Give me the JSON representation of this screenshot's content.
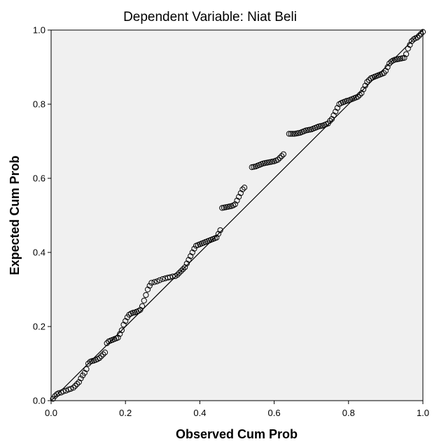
{
  "chart_data": {
    "type": "scatter",
    "title": "Dependent Variable: Niat Beli",
    "xlabel": "Observed Cum Prob",
    "ylabel": "Expected Cum Prob",
    "xlim": [
      0.0,
      1.0
    ],
    "ylim": [
      0.0,
      1.0
    ],
    "xticks": [
      "0.0",
      "0.2",
      "0.4",
      "0.6",
      "0.8",
      "1.0"
    ],
    "yticks": [
      "0.0",
      "0.2",
      "0.4",
      "0.6",
      "0.8",
      "1.0"
    ],
    "grid": false,
    "legend": "none",
    "reference_line": {
      "from": [
        0,
        0
      ],
      "to": [
        1,
        1
      ]
    },
    "series": [
      {
        "points": [
          [
            0.005,
            0.005
          ],
          [
            0.01,
            0.012
          ],
          [
            0.015,
            0.017
          ],
          [
            0.02,
            0.02
          ],
          [
            0.027,
            0.022
          ],
          [
            0.033,
            0.025
          ],
          [
            0.04,
            0.027
          ],
          [
            0.047,
            0.03
          ],
          [
            0.053,
            0.032
          ],
          [
            0.06,
            0.035
          ],
          [
            0.065,
            0.04
          ],
          [
            0.07,
            0.045
          ],
          [
            0.075,
            0.05
          ],
          [
            0.08,
            0.06
          ],
          [
            0.085,
            0.068
          ],
          [
            0.09,
            0.075
          ],
          [
            0.095,
            0.085
          ],
          [
            0.1,
            0.1
          ],
          [
            0.105,
            0.105
          ],
          [
            0.11,
            0.107
          ],
          [
            0.115,
            0.108
          ],
          [
            0.12,
            0.11
          ],
          [
            0.125,
            0.112
          ],
          [
            0.13,
            0.115
          ],
          [
            0.135,
            0.12
          ],
          [
            0.14,
            0.125
          ],
          [
            0.145,
            0.13
          ],
          [
            0.15,
            0.155
          ],
          [
            0.155,
            0.16
          ],
          [
            0.16,
            0.162
          ],
          [
            0.165,
            0.164
          ],
          [
            0.17,
            0.166
          ],
          [
            0.175,
            0.168
          ],
          [
            0.18,
            0.17
          ],
          [
            0.185,
            0.18
          ],
          [
            0.19,
            0.19
          ],
          [
            0.195,
            0.205
          ],
          [
            0.2,
            0.215
          ],
          [
            0.205,
            0.225
          ],
          [
            0.21,
            0.232
          ],
          [
            0.215,
            0.235
          ],
          [
            0.22,
            0.237
          ],
          [
            0.225,
            0.238
          ],
          [
            0.23,
            0.24
          ],
          [
            0.235,
            0.242
          ],
          [
            0.24,
            0.245
          ],
          [
            0.245,
            0.255
          ],
          [
            0.25,
            0.27
          ],
          [
            0.255,
            0.285
          ],
          [
            0.26,
            0.3
          ],
          [
            0.265,
            0.31
          ],
          [
            0.27,
            0.318
          ],
          [
            0.278,
            0.32
          ],
          [
            0.285,
            0.322
          ],
          [
            0.292,
            0.325
          ],
          [
            0.3,
            0.328
          ],
          [
            0.307,
            0.33
          ],
          [
            0.314,
            0.332
          ],
          [
            0.32,
            0.333
          ],
          [
            0.327,
            0.335
          ],
          [
            0.334,
            0.336
          ],
          [
            0.34,
            0.34
          ],
          [
            0.345,
            0.345
          ],
          [
            0.35,
            0.35
          ],
          [
            0.355,
            0.355
          ],
          [
            0.36,
            0.36
          ],
          [
            0.365,
            0.37
          ],
          [
            0.37,
            0.38
          ],
          [
            0.375,
            0.39
          ],
          [
            0.38,
            0.4
          ],
          [
            0.385,
            0.41
          ],
          [
            0.39,
            0.418
          ],
          [
            0.395,
            0.42
          ],
          [
            0.4,
            0.422
          ],
          [
            0.405,
            0.424
          ],
          [
            0.41,
            0.426
          ],
          [
            0.415,
            0.428
          ],
          [
            0.42,
            0.43
          ],
          [
            0.425,
            0.432
          ],
          [
            0.43,
            0.434
          ],
          [
            0.435,
            0.436
          ],
          [
            0.44,
            0.438
          ],
          [
            0.445,
            0.44
          ],
          [
            0.45,
            0.45
          ],
          [
            0.455,
            0.46
          ],
          [
            0.46,
            0.52
          ],
          [
            0.465,
            0.521
          ],
          [
            0.47,
            0.522
          ],
          [
            0.475,
            0.523
          ],
          [
            0.48,
            0.524
          ],
          [
            0.485,
            0.525
          ],
          [
            0.49,
            0.527
          ],
          [
            0.495,
            0.53
          ],
          [
            0.5,
            0.54
          ],
          [
            0.505,
            0.55
          ],
          [
            0.51,
            0.56
          ],
          [
            0.515,
            0.57
          ],
          [
            0.52,
            0.575
          ],
          [
            0.54,
            0.63
          ],
          [
            0.545,
            0.631
          ],
          [
            0.55,
            0.632
          ],
          [
            0.555,
            0.634
          ],
          [
            0.56,
            0.636
          ],
          [
            0.565,
            0.638
          ],
          [
            0.57,
            0.64
          ],
          [
            0.575,
            0.641
          ],
          [
            0.58,
            0.642
          ],
          [
            0.585,
            0.643
          ],
          [
            0.59,
            0.644
          ],
          [
            0.595,
            0.645
          ],
          [
            0.6,
            0.646
          ],
          [
            0.605,
            0.648
          ],
          [
            0.61,
            0.65
          ],
          [
            0.615,
            0.655
          ],
          [
            0.62,
            0.66
          ],
          [
            0.625,
            0.665
          ],
          [
            0.64,
            0.72
          ],
          [
            0.645,
            0.72
          ],
          [
            0.65,
            0.72
          ],
          [
            0.655,
            0.72
          ],
          [
            0.66,
            0.721
          ],
          [
            0.665,
            0.722
          ],
          [
            0.67,
            0.723
          ],
          [
            0.675,
            0.725
          ],
          [
            0.68,
            0.727
          ],
          [
            0.685,
            0.729
          ],
          [
            0.69,
            0.73
          ],
          [
            0.695,
            0.731
          ],
          [
            0.7,
            0.732
          ],
          [
            0.705,
            0.734
          ],
          [
            0.71,
            0.736
          ],
          [
            0.715,
            0.738
          ],
          [
            0.72,
            0.74
          ],
          [
            0.725,
            0.741
          ],
          [
            0.73,
            0.742
          ],
          [
            0.735,
            0.744
          ],
          [
            0.74,
            0.746
          ],
          [
            0.745,
            0.748
          ],
          [
            0.75,
            0.755
          ],
          [
            0.755,
            0.76
          ],
          [
            0.76,
            0.77
          ],
          [
            0.765,
            0.78
          ],
          [
            0.77,
            0.79
          ],
          [
            0.775,
            0.8
          ],
          [
            0.78,
            0.803
          ],
          [
            0.785,
            0.805
          ],
          [
            0.79,
            0.807
          ],
          [
            0.795,
            0.809
          ],
          [
            0.8,
            0.81
          ],
          [
            0.805,
            0.812
          ],
          [
            0.81,
            0.814
          ],
          [
            0.815,
            0.816
          ],
          [
            0.82,
            0.818
          ],
          [
            0.825,
            0.82
          ],
          [
            0.83,
            0.825
          ],
          [
            0.835,
            0.83
          ],
          [
            0.84,
            0.84
          ],
          [
            0.845,
            0.85
          ],
          [
            0.85,
            0.86
          ],
          [
            0.855,
            0.865
          ],
          [
            0.86,
            0.87
          ],
          [
            0.865,
            0.872
          ],
          [
            0.87,
            0.874
          ],
          [
            0.875,
            0.876
          ],
          [
            0.88,
            0.878
          ],
          [
            0.885,
            0.88
          ],
          [
            0.89,
            0.882
          ],
          [
            0.895,
            0.884
          ],
          [
            0.9,
            0.89
          ],
          [
            0.905,
            0.9
          ],
          [
            0.91,
            0.91
          ],
          [
            0.915,
            0.915
          ],
          [
            0.92,
            0.918
          ],
          [
            0.925,
            0.92
          ],
          [
            0.93,
            0.921
          ],
          [
            0.935,
            0.922
          ],
          [
            0.94,
            0.923
          ],
          [
            0.945,
            0.924
          ],
          [
            0.95,
            0.925
          ],
          [
            0.955,
            0.935
          ],
          [
            0.96,
            0.95
          ],
          [
            0.965,
            0.96
          ],
          [
            0.97,
            0.97
          ],
          [
            0.975,
            0.975
          ],
          [
            0.98,
            0.978
          ],
          [
            0.985,
            0.98
          ],
          [
            0.99,
            0.985
          ],
          [
            0.995,
            0.99
          ],
          [
            1.0,
            0.995
          ]
        ]
      }
    ],
    "colors": {
      "plot_background": "#f0f0f0",
      "marker_stroke": "#000000",
      "line": "#000000"
    }
  }
}
